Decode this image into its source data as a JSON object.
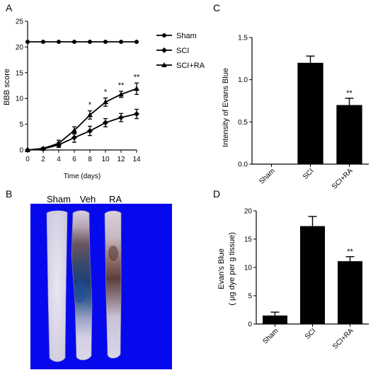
{
  "panels": {
    "a": {
      "letter": "A"
    },
    "b": {
      "letter": "B",
      "labels": [
        "Sham",
        "Veh",
        "RA"
      ]
    },
    "c": {
      "letter": "C"
    },
    "d": {
      "letter": "D"
    }
  },
  "chart_data": [
    {
      "id": "A",
      "type": "line",
      "xlabel": "Time (days)",
      "ylabel": "BBB score",
      "x": [
        0,
        2,
        4,
        6,
        8,
        10,
        12,
        14
      ],
      "xlim": [
        0,
        14
      ],
      "ylim": [
        0,
        25
      ],
      "yticks": [
        0,
        5,
        10,
        15,
        20,
        25
      ],
      "series": [
        {
          "name": "Sham",
          "marker": "circle",
          "values": [
            21,
            21,
            21,
            21,
            21,
            21,
            21,
            21
          ],
          "errors": [
            0,
            0,
            0,
            0,
            0,
            0,
            0,
            0
          ]
        },
        {
          "name": "SCI",
          "marker": "diamond",
          "values": [
            0,
            0.2,
            1.0,
            2.4,
            3.7,
            5.3,
            6.3,
            7.0
          ],
          "errors": [
            0,
            0.2,
            0.5,
            0.9,
            0.9,
            0.8,
            0.8,
            0.9
          ]
        },
        {
          "name": "SCI+RA",
          "marker": "triangle",
          "values": [
            0,
            0.3,
            1.3,
            3.8,
            6.8,
            9.3,
            10.8,
            11.9
          ],
          "errors": [
            0,
            0.2,
            0.6,
            0.7,
            0.8,
            0.8,
            0.6,
            1.1
          ]
        }
      ],
      "annotations": [
        {
          "x": 8,
          "text": "*"
        },
        {
          "x": 10,
          "text": "*"
        },
        {
          "x": 12,
          "text": "**"
        },
        {
          "x": 14,
          "text": "**"
        }
      ],
      "legend": "right"
    },
    {
      "id": "C",
      "type": "bar",
      "ylabel": "Intensity of Evans Blue",
      "categories": [
        "Sham",
        "SCI",
        "SCI+RA"
      ],
      "values": [
        0,
        1.2,
        0.7
      ],
      "errors": [
        0,
        0.08,
        0.08
      ],
      "ylim": [
        0,
        1.5
      ],
      "yticks": [
        "0.0",
        "0.5",
        "1.0",
        "1.5"
      ],
      "annotations": [
        {
          "category": "SCI+RA",
          "text": "**"
        }
      ]
    },
    {
      "id": "D",
      "type": "bar",
      "ylabel": "Evan's Blue",
      "ylabel2": "( μg dye per g tissue)",
      "categories": [
        "Sham",
        "SCI",
        "SCI+RA"
      ],
      "values": [
        1.5,
        17.3,
        11.1
      ],
      "errors": [
        0.6,
        1.7,
        0.8
      ],
      "ylim": [
        0,
        20
      ],
      "yticks": [
        "0",
        "5",
        "10",
        "15",
        "20"
      ],
      "annotations": [
        {
          "category": "SCI+RA",
          "text": "**"
        }
      ]
    }
  ]
}
